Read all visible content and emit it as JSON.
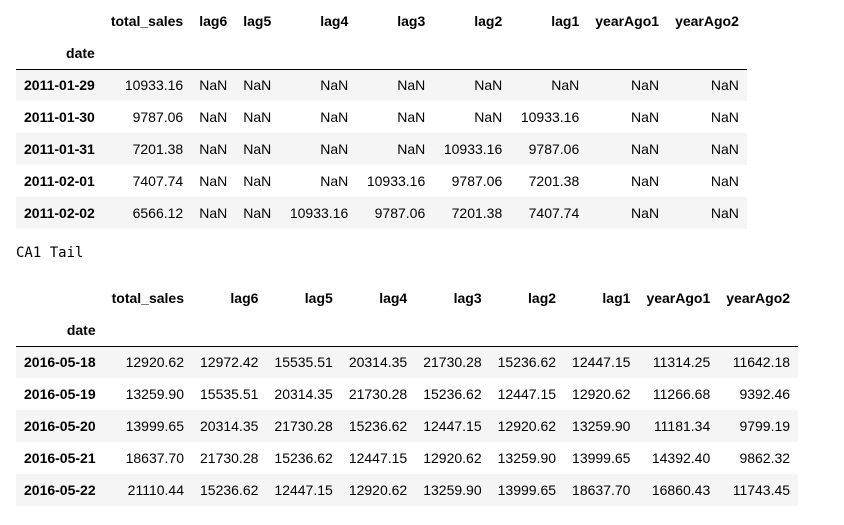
{
  "head_table": {
    "columns": [
      "total_sales",
      "lag6",
      "lag5",
      "lag4",
      "lag3",
      "lag2",
      "lag1",
      "yearAgo1",
      "yearAgo2"
    ],
    "index_name": "date",
    "rows": [
      {
        "date": "2011-01-29",
        "values": [
          "10933.16",
          "NaN",
          "NaN",
          "NaN",
          "NaN",
          "NaN",
          "NaN",
          "NaN",
          "NaN"
        ]
      },
      {
        "date": "2011-01-30",
        "values": [
          "9787.06",
          "NaN",
          "NaN",
          "NaN",
          "NaN",
          "NaN",
          "10933.16",
          "NaN",
          "NaN"
        ]
      },
      {
        "date": "2011-01-31",
        "values": [
          "7201.38",
          "NaN",
          "NaN",
          "NaN",
          "NaN",
          "10933.16",
          "9787.06",
          "NaN",
          "NaN"
        ]
      },
      {
        "date": "2011-02-01",
        "values": [
          "7407.74",
          "NaN",
          "NaN",
          "NaN",
          "10933.16",
          "9787.06",
          "7201.38",
          "NaN",
          "NaN"
        ]
      },
      {
        "date": "2011-02-02",
        "values": [
          "6566.12",
          "NaN",
          "NaN",
          "10933.16",
          "9787.06",
          "7201.38",
          "7407.74",
          "NaN",
          "NaN"
        ]
      }
    ]
  },
  "tail_label": "CA1 Tail",
  "tail_table": {
    "columns": [
      "total_sales",
      "lag6",
      "lag5",
      "lag4",
      "lag3",
      "lag2",
      "lag1",
      "yearAgo1",
      "yearAgo2"
    ],
    "index_name": "date",
    "rows": [
      {
        "date": "2016-05-18",
        "values": [
          "12920.62",
          "12972.42",
          "15535.51",
          "20314.35",
          "21730.28",
          "15236.62",
          "12447.15",
          "11314.25",
          "11642.18"
        ]
      },
      {
        "date": "2016-05-19",
        "values": [
          "13259.90",
          "15535.51",
          "20314.35",
          "21730.28",
          "15236.62",
          "12447.15",
          "12920.62",
          "11266.68",
          "9392.46"
        ]
      },
      {
        "date": "2016-05-20",
        "values": [
          "13999.65",
          "20314.35",
          "21730.28",
          "15236.62",
          "12447.15",
          "12920.62",
          "13259.90",
          "11181.34",
          "9799.19"
        ]
      },
      {
        "date": "2016-05-21",
        "values": [
          "18637.70",
          "21730.28",
          "15236.62",
          "12447.15",
          "12920.62",
          "13259.90",
          "13999.65",
          "14392.40",
          "9862.32"
        ]
      },
      {
        "date": "2016-05-22",
        "values": [
          "21110.44",
          "15236.62",
          "12447.15",
          "12920.62",
          "13259.90",
          "13999.65",
          "18637.70",
          "16860.43",
          "11743.45"
        ]
      }
    ]
  }
}
